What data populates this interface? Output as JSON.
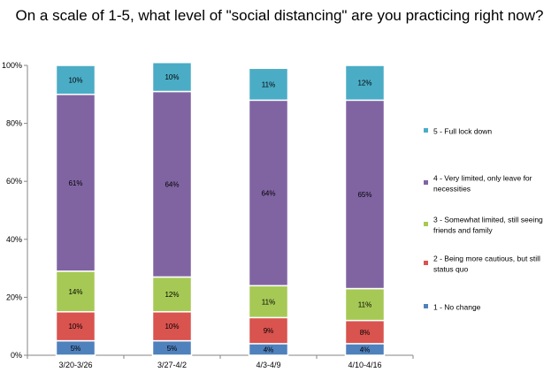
{
  "chart_data": {
    "type": "bar",
    "stacked": true,
    "title": "On a scale of 1-5, what level of \"social distancing\" are you practicing right now?",
    "categories": [
      "3/20-3/26",
      "3/27-4/2",
      "4/3-4/9",
      "4/10-4/16"
    ],
    "ylim": [
      0,
      100
    ],
    "yticks": [
      "0%",
      "20%",
      "40%",
      "60%",
      "80%",
      "100%"
    ],
    "grid": false,
    "legend_position": "right",
    "series": [
      {
        "name": "1 - No change",
        "color": "#4f81bd",
        "values": [
          5,
          5,
          4,
          4
        ],
        "labels": [
          "5%",
          "5%",
          "4%",
          "4%"
        ]
      },
      {
        "name": "2 - Being more cautious, but still status quo",
        "color": "#d9534f",
        "values": [
          10,
          10,
          9,
          8
        ],
        "labels": [
          "10%",
          "10%",
          "9%",
          "8%"
        ]
      },
      {
        "name": "3 - Somewhat limited, still seeing friends and family",
        "color": "#a6c955",
        "values": [
          14,
          12,
          11,
          11
        ],
        "labels": [
          "14%",
          "12%",
          "11%",
          "11%"
        ]
      },
      {
        "name": "4 - Very limited, only leave for necessities",
        "color": "#8064a2",
        "values": [
          61,
          64,
          64,
          65
        ],
        "labels": [
          "61%",
          "64%",
          "64%",
          "65%"
        ]
      },
      {
        "name": "5 - Full lock down",
        "color": "#4bacc6",
        "values": [
          10,
          10,
          11,
          12
        ],
        "labels": [
          "10%",
          "10%",
          "11%",
          "12%"
        ]
      }
    ],
    "legend_lines": [
      [
        "5 - Full lock down"
      ],
      [
        "4 - Very limited, only leave for",
        "necessities"
      ],
      [
        "3 - Somewhat limited, still seeing",
        "friends and family"
      ],
      [
        "2 - Being more cautious, but still",
        "status quo"
      ],
      [
        "1 - No change"
      ]
    ]
  }
}
